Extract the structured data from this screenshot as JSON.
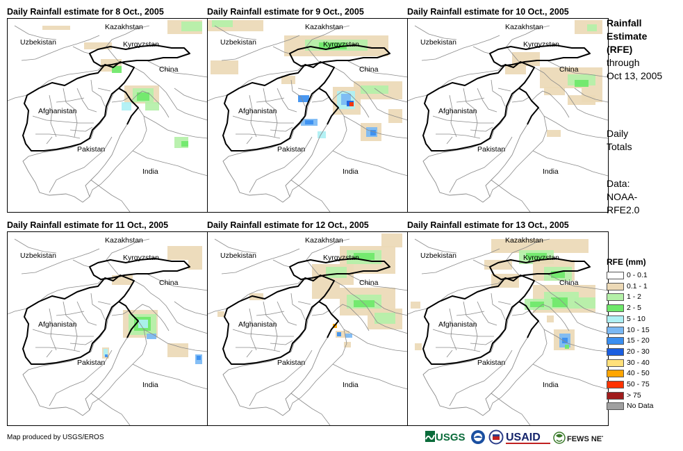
{
  "panels": [
    {
      "title": "Daily Rainfall estimate for 8 Oct., 2005"
    },
    {
      "title": "Daily Rainfall estimate for 9 Oct., 2005"
    },
    {
      "title": "Daily Rainfall estimate for 10 Oct., 2005"
    },
    {
      "title": "Daily Rainfall estimate for 11 Oct., 2005"
    },
    {
      "title": "Daily Rainfall estimate for 12 Oct., 2005"
    },
    {
      "title": "Daily Rainfall estimate for 13 Oct., 2005"
    }
  ],
  "map_labels": {
    "kazakhstan": "Kazakhstan",
    "uzbekistan": "Uzbekistan",
    "kyrgyzstan": "Kyrgyzstan",
    "china": "China",
    "afghanistan": "Afghanistan",
    "pakistan": "Pakistan",
    "india": "India"
  },
  "side_text": {
    "title_1": "Rainfall",
    "title_2": "Estimate",
    "title_3": "(RFE)",
    "through": "through",
    "date": "Oct 13, 2005",
    "daily": "Daily",
    "totals": "Totals",
    "data_label": "Data:",
    "data_src_1": "NOAA-",
    "data_src_2": "RFE2.0"
  },
  "legend": {
    "title": "RFE (mm)",
    "items": [
      {
        "label": "0 - 0.1",
        "color": "#ffffff"
      },
      {
        "label": "0.1 - 1",
        "color": "#ecd9b6"
      },
      {
        "label": "1 - 2",
        "color": "#b4f0a8"
      },
      {
        "label": "2 - 5",
        "color": "#6ee86a"
      },
      {
        "label": "5 - 10",
        "color": "#aef0f4"
      },
      {
        "label": "10 - 15",
        "color": "#7ab8f4"
      },
      {
        "label": "15 - 20",
        "color": "#3a8ef0"
      },
      {
        "label": "20 - 30",
        "color": "#1a5ee0"
      },
      {
        "label": "30 - 40",
        "color": "#ffe07a"
      },
      {
        "label": "40 - 50",
        "color": "#ffa500"
      },
      {
        "label": "50 - 75",
        "color": "#ff3300"
      },
      {
        "label": "> 75",
        "color": "#a01c1c"
      },
      {
        "label": "No Data",
        "color": "#a0a0a0"
      }
    ]
  },
  "credit": "Map produced by USGS/EROS",
  "logos": {
    "usgs": "USGS",
    "usaid": "USAID",
    "fews": "FEWS NET"
  }
}
